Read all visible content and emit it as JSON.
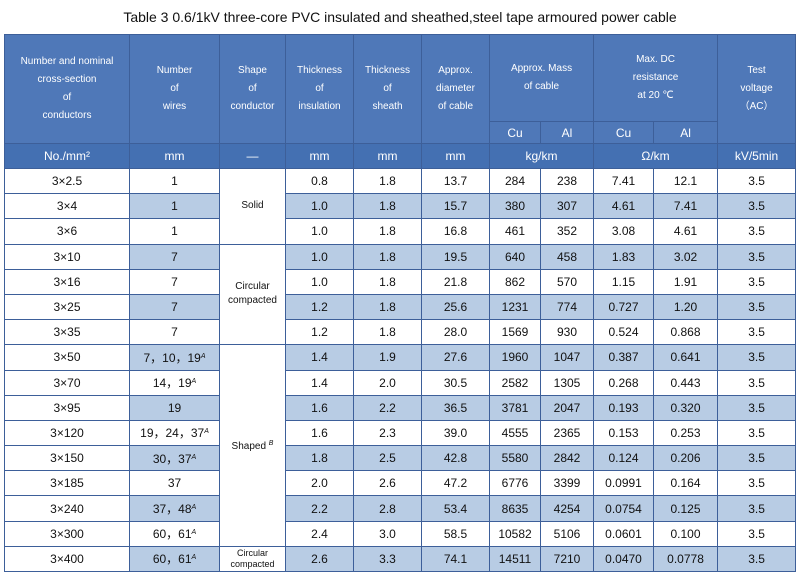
{
  "title": "Table 3   0.6/1kV three-core PVC insulated and sheathed,steel tape armoured power cable",
  "headers": {
    "cross_section": [
      "Number and nominal",
      "cross-section",
      "of",
      "conductors"
    ],
    "wires": [
      "Number",
      "of",
      "wires"
    ],
    "shape": [
      "Shape",
      "of",
      "conductor"
    ],
    "insulation": [
      "Thickness",
      "of",
      "insulation"
    ],
    "sheath": [
      "Thickness",
      "of",
      "sheath"
    ],
    "diameter": [
      "Approx.",
      "diameter",
      "of cable"
    ],
    "mass": [
      "Approx. Mass",
      "of cable"
    ],
    "resistance": [
      "Max. DC",
      "resistance",
      "at 20 ℃"
    ],
    "voltage": [
      "Test",
      "voltage",
      "（AC）"
    ],
    "cu": "Cu",
    "al": "Al"
  },
  "units": {
    "cross_section": "No./mm²",
    "wires": "mm",
    "shape": "—",
    "insulation": "mm",
    "sheath": "mm",
    "diameter": "mm",
    "mass": "kg/km",
    "resistance": "Ω/km",
    "voltage": "kV/5min"
  },
  "shapes": {
    "solid": "Solid",
    "circular_compacted": [
      "Circular",
      "compacted"
    ],
    "shaped": "Shaped",
    "shaped_note": "B",
    "circular_compacted_last": [
      "Circular",
      "compacted"
    ]
  },
  "rows": [
    {
      "size": "3×2.5",
      "wires": "1",
      "wires_note": "",
      "insulation": "0.8",
      "sheath": "1.8",
      "diameter": "13.7",
      "mass_cu": "284",
      "mass_al": "238",
      "res_cu": "7.41",
      "res_al": "12.1",
      "voltage": "3.5"
    },
    {
      "size": "3×4",
      "wires": "1",
      "wires_note": "",
      "insulation": "1.0",
      "sheath": "1.8",
      "diameter": "15.7",
      "mass_cu": "380",
      "mass_al": "307",
      "res_cu": "4.61",
      "res_al": "7.41",
      "voltage": "3.5"
    },
    {
      "size": "3×6",
      "wires": "1",
      "wires_note": "",
      "insulation": "1.0",
      "sheath": "1.8",
      "diameter": "16.8",
      "mass_cu": "461",
      "mass_al": "352",
      "res_cu": "3.08",
      "res_al": "4.61",
      "voltage": "3.5"
    },
    {
      "size": "3×10",
      "wires": "7",
      "wires_note": "",
      "insulation": "1.0",
      "sheath": "1.8",
      "diameter": "19.5",
      "mass_cu": "640",
      "mass_al": "458",
      "res_cu": "1.83",
      "res_al": "3.02",
      "voltage": "3.5"
    },
    {
      "size": "3×16",
      "wires": "7",
      "wires_note": "",
      "insulation": "1.0",
      "sheath": "1.8",
      "diameter": "21.8",
      "mass_cu": "862",
      "mass_al": "570",
      "res_cu": "1.15",
      "res_al": "1.91",
      "voltage": "3.5"
    },
    {
      "size": "3×25",
      "wires": "7",
      "wires_note": "",
      "insulation": "1.2",
      "sheath": "1.8",
      "diameter": "25.6",
      "mass_cu": "1231",
      "mass_al": "774",
      "res_cu": "0.727",
      "res_al": "1.20",
      "voltage": "3.5"
    },
    {
      "size": "3×35",
      "wires": "7",
      "wires_note": "",
      "insulation": "1.2",
      "sheath": "1.8",
      "diameter": "28.0",
      "mass_cu": "1569",
      "mass_al": "930",
      "res_cu": "0.524",
      "res_al": "0.868",
      "voltage": "3.5"
    },
    {
      "size": "3×50",
      "wires": "7，10，19",
      "wires_note": "A",
      "insulation": "1.4",
      "sheath": "1.9",
      "diameter": "27.6",
      "mass_cu": "1960",
      "mass_al": "1047",
      "res_cu": "0.387",
      "res_al": "0.641",
      "voltage": "3.5"
    },
    {
      "size": "3×70",
      "wires": "14，19",
      "wires_note": "A",
      "insulation": "1.4",
      "sheath": "2.0",
      "diameter": "30.5",
      "mass_cu": "2582",
      "mass_al": "1305",
      "res_cu": "0.268",
      "res_al": "0.443",
      "voltage": "3.5"
    },
    {
      "size": "3×95",
      "wires": "19",
      "wires_note": "",
      "insulation": "1.6",
      "sheath": "2.2",
      "diameter": "36.5",
      "mass_cu": "3781",
      "mass_al": "2047",
      "res_cu": "0.193",
      "res_al": "0.320",
      "voltage": "3.5"
    },
    {
      "size": "3×120",
      "wires": "19，24，37",
      "wires_note": "A",
      "insulation": "1.6",
      "sheath": "2.3",
      "diameter": "39.0",
      "mass_cu": "4555",
      "mass_al": "2365",
      "res_cu": "0.153",
      "res_al": "0.253",
      "voltage": "3.5"
    },
    {
      "size": "3×150",
      "wires": "30，37",
      "wires_note": "A",
      "insulation": "1.8",
      "sheath": "2.5",
      "diameter": "42.8",
      "mass_cu": "5580",
      "mass_al": "2842",
      "res_cu": "0.124",
      "res_al": "0.206",
      "voltage": "3.5"
    },
    {
      "size": "3×185",
      "wires": "37",
      "wires_note": "",
      "insulation": "2.0",
      "sheath": "2.6",
      "diameter": "47.2",
      "mass_cu": "6776",
      "mass_al": "3399",
      "res_cu": "0.0991",
      "res_al": "0.164",
      "voltage": "3.5"
    },
    {
      "size": "3×240",
      "wires": "37，48",
      "wires_note": "A",
      "insulation": "2.2",
      "sheath": "2.8",
      "diameter": "53.4",
      "mass_cu": "8635",
      "mass_al": "4254",
      "res_cu": "0.0754",
      "res_al": "0.125",
      "voltage": "3.5"
    },
    {
      "size": "3×300",
      "wires": "60，61",
      "wires_note": "A",
      "insulation": "2.4",
      "sheath": "3.0",
      "diameter": "58.5",
      "mass_cu": "10582",
      "mass_al": "5106",
      "res_cu": "0.0601",
      "res_al": "0.100",
      "voltage": "3.5"
    },
    {
      "size": "3×400",
      "wires": "60，61",
      "wires_note": "A",
      "insulation": "2.6",
      "sheath": "3.3",
      "diameter": "74.1",
      "mass_cu": "14511",
      "mass_al": "7210",
      "res_cu": "0.0470",
      "res_al": "0.0778",
      "voltage": "3.5"
    }
  ],
  "colors": {
    "header_bg": "#4f78b8",
    "units_bg": "#4470b2",
    "highlight": "#b8cce4",
    "border": "#3d5f99"
  }
}
